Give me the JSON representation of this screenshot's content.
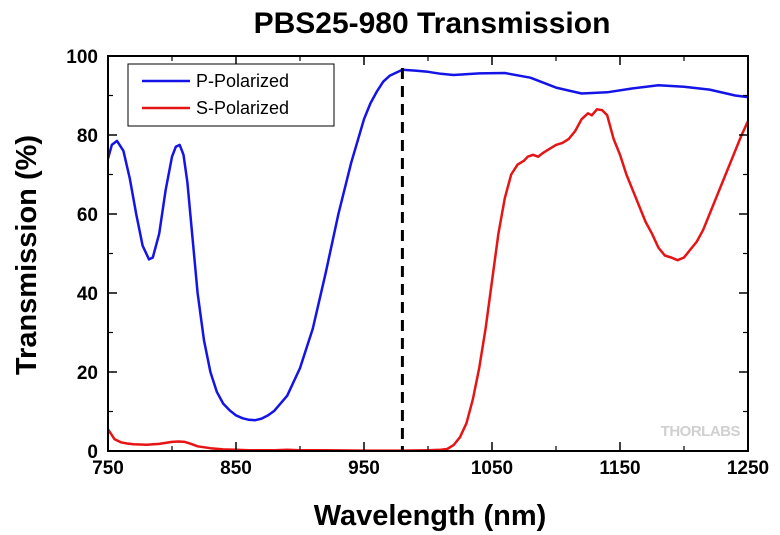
{
  "chart_data": {
    "type": "line",
    "title": "PBS25-980 Transmission",
    "xlabel": "Wavelength (nm)",
    "ylabel": "Transmission (%)",
    "xlim": [
      750,
      1250
    ],
    "ylim": [
      0,
      100
    ],
    "xticks": [
      750,
      850,
      950,
      1050,
      1150,
      1250
    ],
    "yticks": [
      0,
      20,
      40,
      60,
      80,
      100
    ],
    "grid": false,
    "legend_position": "top-left",
    "design_wavelength_marker": 980,
    "watermark": "THORLABS",
    "series": [
      {
        "name": "P-Polarized",
        "color": "#1414e6",
        "x": [
          750,
          753,
          757,
          762,
          767,
          772,
          777,
          782,
          785,
          790,
          795,
          800,
          803,
          806,
          809,
          812,
          816,
          820,
          825,
          830,
          835,
          840,
          845,
          850,
          855,
          860,
          865,
          870,
          875,
          880,
          890,
          900,
          910,
          920,
          930,
          940,
          950,
          955,
          960,
          965,
          970,
          980,
          990,
          1000,
          1010,
          1020,
          1040,
          1060,
          1080,
          1100,
          1120,
          1140,
          1160,
          1180,
          1200,
          1220,
          1240,
          1250
        ],
        "values": [
          74,
          77.5,
          78.5,
          76,
          69,
          60,
          52,
          48.5,
          49,
          55,
          66,
          74.5,
          77,
          77.5,
          75,
          68,
          54,
          40,
          28,
          20,
          15,
          12,
          10.3,
          9,
          8.3,
          7.9,
          7.8,
          8.2,
          9,
          10.2,
          14,
          21,
          31,
          45,
          60,
          73,
          84,
          88,
          91,
          93.5,
          95,
          96.5,
          96.3,
          96,
          95.5,
          95.2,
          95.6,
          95.7,
          94.5,
          92,
          90.5,
          90.8,
          91.8,
          92.6,
          92.2,
          91.5,
          90,
          89.6
        ]
      },
      {
        "name": "S-Polarized",
        "color": "#e61414",
        "x": [
          750,
          752,
          755,
          760,
          765,
          770,
          780,
          790,
          800,
          805,
          810,
          815,
          820,
          830,
          840,
          850,
          860,
          870,
          880,
          890,
          900,
          920,
          950,
          980,
          1000,
          1010,
          1015,
          1020,
          1025,
          1030,
          1035,
          1040,
          1045,
          1050,
          1055,
          1060,
          1065,
          1070,
          1075,
          1078,
          1082,
          1086,
          1090,
          1095,
          1100,
          1105,
          1110,
          1115,
          1120,
          1125,
          1128,
          1132,
          1136,
          1140,
          1145,
          1150,
          1155,
          1160,
          1165,
          1170,
          1175,
          1180,
          1185,
          1190,
          1195,
          1200,
          1205,
          1210,
          1215,
          1220,
          1225,
          1230,
          1235,
          1240,
          1245,
          1250
        ],
        "values": [
          5.5,
          4.5,
          3,
          2.2,
          1.9,
          1.7,
          1.6,
          1.8,
          2.3,
          2.4,
          2.3,
          1.8,
          1.2,
          0.7,
          0.4,
          0.3,
          0.2,
          0.2,
          0.2,
          0.3,
          0.2,
          0.2,
          0.1,
          0.1,
          0.2,
          0.3,
          0.5,
          1.5,
          3.5,
          7,
          13,
          21,
          31,
          43,
          55,
          64,
          70,
          72.5,
          73.5,
          74.5,
          75,
          74.5,
          75.5,
          76.5,
          77.5,
          78,
          79,
          81,
          84,
          85.5,
          85,
          86.5,
          86.3,
          85,
          79,
          75,
          70,
          66,
          62,
          58,
          55,
          51.5,
          49.5,
          49,
          48.3,
          49,
          51,
          53,
          56,
          60,
          64,
          68,
          72,
          76,
          80,
          83.5
        ]
      }
    ]
  }
}
